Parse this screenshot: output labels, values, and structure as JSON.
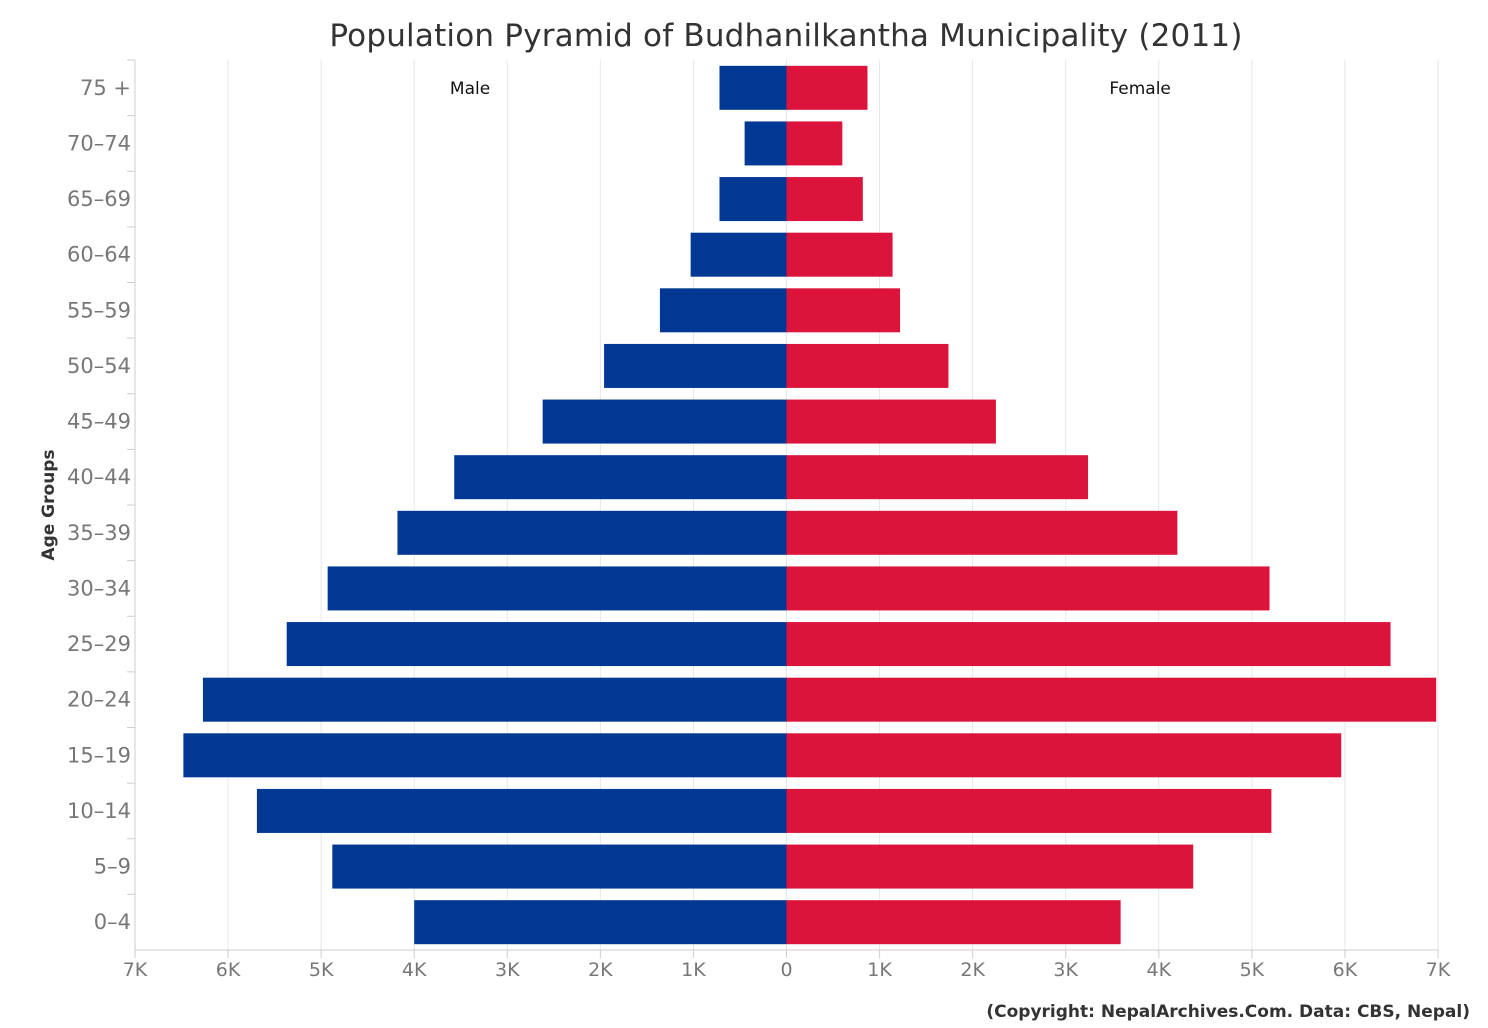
{
  "chart_data": {
    "type": "bar",
    "orientation": "horizontal",
    "title": "Population Pyramid of Budhanilkantha Municipality (2011)",
    "ylabel": "Age Groups",
    "xlabel": "",
    "categories": [
      "75 +",
      "70–74",
      "65–69",
      "60–64",
      "55–59",
      "50–54",
      "45–49",
      "40–44",
      "35–39",
      "30–34",
      "25–29",
      "20–24",
      "15–19",
      "10–14",
      "5–9",
      "0–4"
    ],
    "series": [
      {
        "name": "Male",
        "side": "left",
        "color": "#003893",
        "values": [
          720,
          450,
          720,
          1030,
          1360,
          1960,
          2620,
          3570,
          4180,
          4930,
          5370,
          6270,
          6480,
          5690,
          4880,
          4000
        ]
      },
      {
        "name": "Female",
        "side": "right",
        "color": "#DC143C",
        "values": [
          870,
          600,
          820,
          1140,
          1220,
          1740,
          2250,
          3240,
          4200,
          5190,
          6490,
          6980,
          5960,
          5210,
          4370,
          3590
        ]
      }
    ],
    "xlim": [
      -7000,
      7000
    ],
    "x_ticks": [
      -7000,
      -6000,
      -5000,
      -4000,
      -3000,
      -2000,
      -1000,
      0,
      1000,
      2000,
      3000,
      4000,
      5000,
      6000,
      7000
    ],
    "x_tick_labels": [
      "7K",
      "6K",
      "5K",
      "4K",
      "3K",
      "2K",
      "1K",
      "0",
      "1K",
      "2K",
      "3K",
      "4K",
      "5K",
      "6K",
      "7K"
    ],
    "grid": true,
    "legend": "none"
  },
  "credit": "(Copyright: NepalArchives.Com. Data: CBS, Nepal)"
}
